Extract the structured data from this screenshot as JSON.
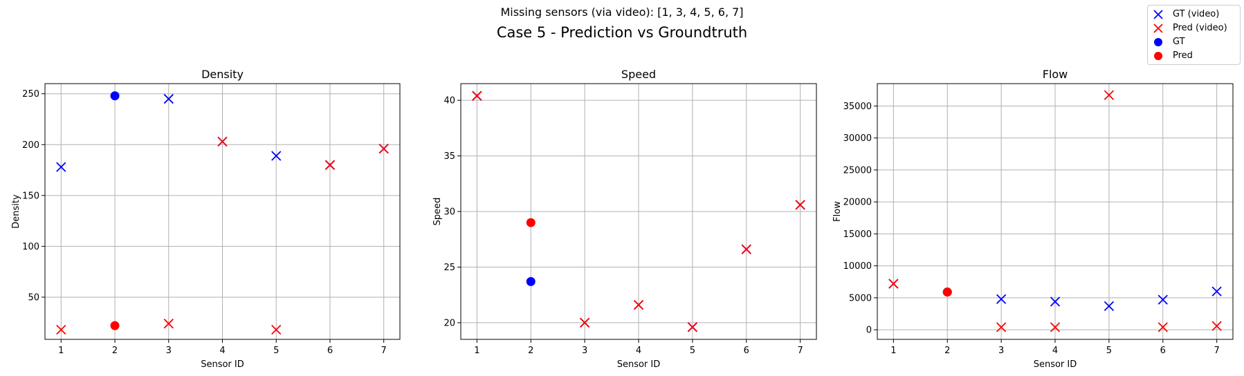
{
  "figure": {
    "subtitle": "Missing sensors (via video): [1, 3, 4, 5, 6, 7]",
    "title": "Case 5 - Prediction vs Groundtruth"
  },
  "legend": {
    "placement": "top-right",
    "entries": [
      {
        "label": "GT (video)",
        "marker": "x",
        "color": "#0000ff"
      },
      {
        "label": "Pred (video)",
        "marker": "x",
        "color": "#ff0000"
      },
      {
        "label": "GT",
        "marker": "circle",
        "color": "#0000ff"
      },
      {
        "label": "Pred",
        "marker": "circle",
        "color": "#ff0000"
      }
    ]
  },
  "chart_data": [
    {
      "type": "scatter",
      "title": "Density",
      "xlabel": "Sensor ID",
      "ylabel": "Density",
      "grid": true,
      "xlim": [
        0.7,
        7.3
      ],
      "ylim": [
        8.5,
        260
      ],
      "xticks": [
        1,
        2,
        3,
        4,
        5,
        6,
        7
      ],
      "yticks": [
        50,
        100,
        150,
        200,
        250
      ],
      "series": [
        {
          "name": "GT (video)",
          "marker": "x",
          "color": "#0000ff",
          "x": [
            1,
            3,
            4,
            5,
            6,
            7
          ],
          "y": [
            178,
            245,
            203,
            189,
            180,
            196
          ]
        },
        {
          "name": "Pred (video)",
          "marker": "x",
          "color": "#ff0000",
          "x": [
            1,
            3,
            4,
            5,
            6,
            7
          ],
          "y": [
            18,
            24,
            203,
            18,
            180,
            196
          ]
        },
        {
          "name": "GT",
          "marker": "circle",
          "color": "#0000ff",
          "x": [
            2
          ],
          "y": [
            248
          ]
        },
        {
          "name": "Pred",
          "marker": "circle",
          "color": "#ff0000",
          "x": [
            2
          ],
          "y": [
            22
          ]
        }
      ]
    },
    {
      "type": "scatter",
      "title": "Speed",
      "xlabel": "Sensor ID",
      "ylabel": "Speed",
      "grid": true,
      "xlim": [
        0.7,
        7.3
      ],
      "ylim": [
        18.5,
        41.5
      ],
      "xticks": [
        1,
        2,
        3,
        4,
        5,
        6,
        7
      ],
      "yticks": [
        20,
        25,
        30,
        35,
        40
      ],
      "series": [
        {
          "name": "GT (video)",
          "marker": "x",
          "color": "#0000ff",
          "x": [
            1,
            3,
            4,
            5,
            6,
            7
          ],
          "y": [
            40.4,
            20.0,
            21.6,
            19.6,
            26.6,
            30.6
          ]
        },
        {
          "name": "Pred (video)",
          "marker": "x",
          "color": "#ff0000",
          "x": [
            1,
            3,
            4,
            5,
            6,
            7
          ],
          "y": [
            40.4,
            20.0,
            21.6,
            19.6,
            26.6,
            30.6
          ]
        },
        {
          "name": "GT",
          "marker": "circle",
          "color": "#0000ff",
          "x": [
            2
          ],
          "y": [
            23.7
          ]
        },
        {
          "name": "Pred",
          "marker": "circle",
          "color": "#ff0000",
          "x": [
            2
          ],
          "y": [
            29.0
          ]
        }
      ]
    },
    {
      "type": "scatter",
      "title": "Flow",
      "xlabel": "Sensor ID",
      "ylabel": "Flow",
      "grid": true,
      "xlim": [
        0.7,
        7.3
      ],
      "ylim": [
        -1500,
        38500
      ],
      "xticks": [
        1,
        2,
        3,
        4,
        5,
        6,
        7
      ],
      "yticks": [
        0,
        5000,
        10000,
        15000,
        20000,
        25000,
        30000,
        35000
      ],
      "series": [
        {
          "name": "GT (video)",
          "marker": "x",
          "color": "#0000ff",
          "x": [
            1,
            3,
            4,
            5,
            6,
            7
          ],
          "y": [
            7200,
            4800,
            4400,
            3700,
            4700,
            6000
          ]
        },
        {
          "name": "Pred (video)",
          "marker": "x",
          "color": "#ff0000",
          "x": [
            1,
            3,
            4,
            5,
            6,
            7
          ],
          "y": [
            7200,
            400,
            400,
            36700,
            400,
            600
          ]
        },
        {
          "name": "GT",
          "marker": "circle",
          "color": "#0000ff",
          "x": [
            2
          ],
          "y": [
            5900
          ]
        },
        {
          "name": "Pred",
          "marker": "circle",
          "color": "#ff0000",
          "x": [
            2
          ],
          "y": [
            5900
          ]
        }
      ]
    }
  ]
}
